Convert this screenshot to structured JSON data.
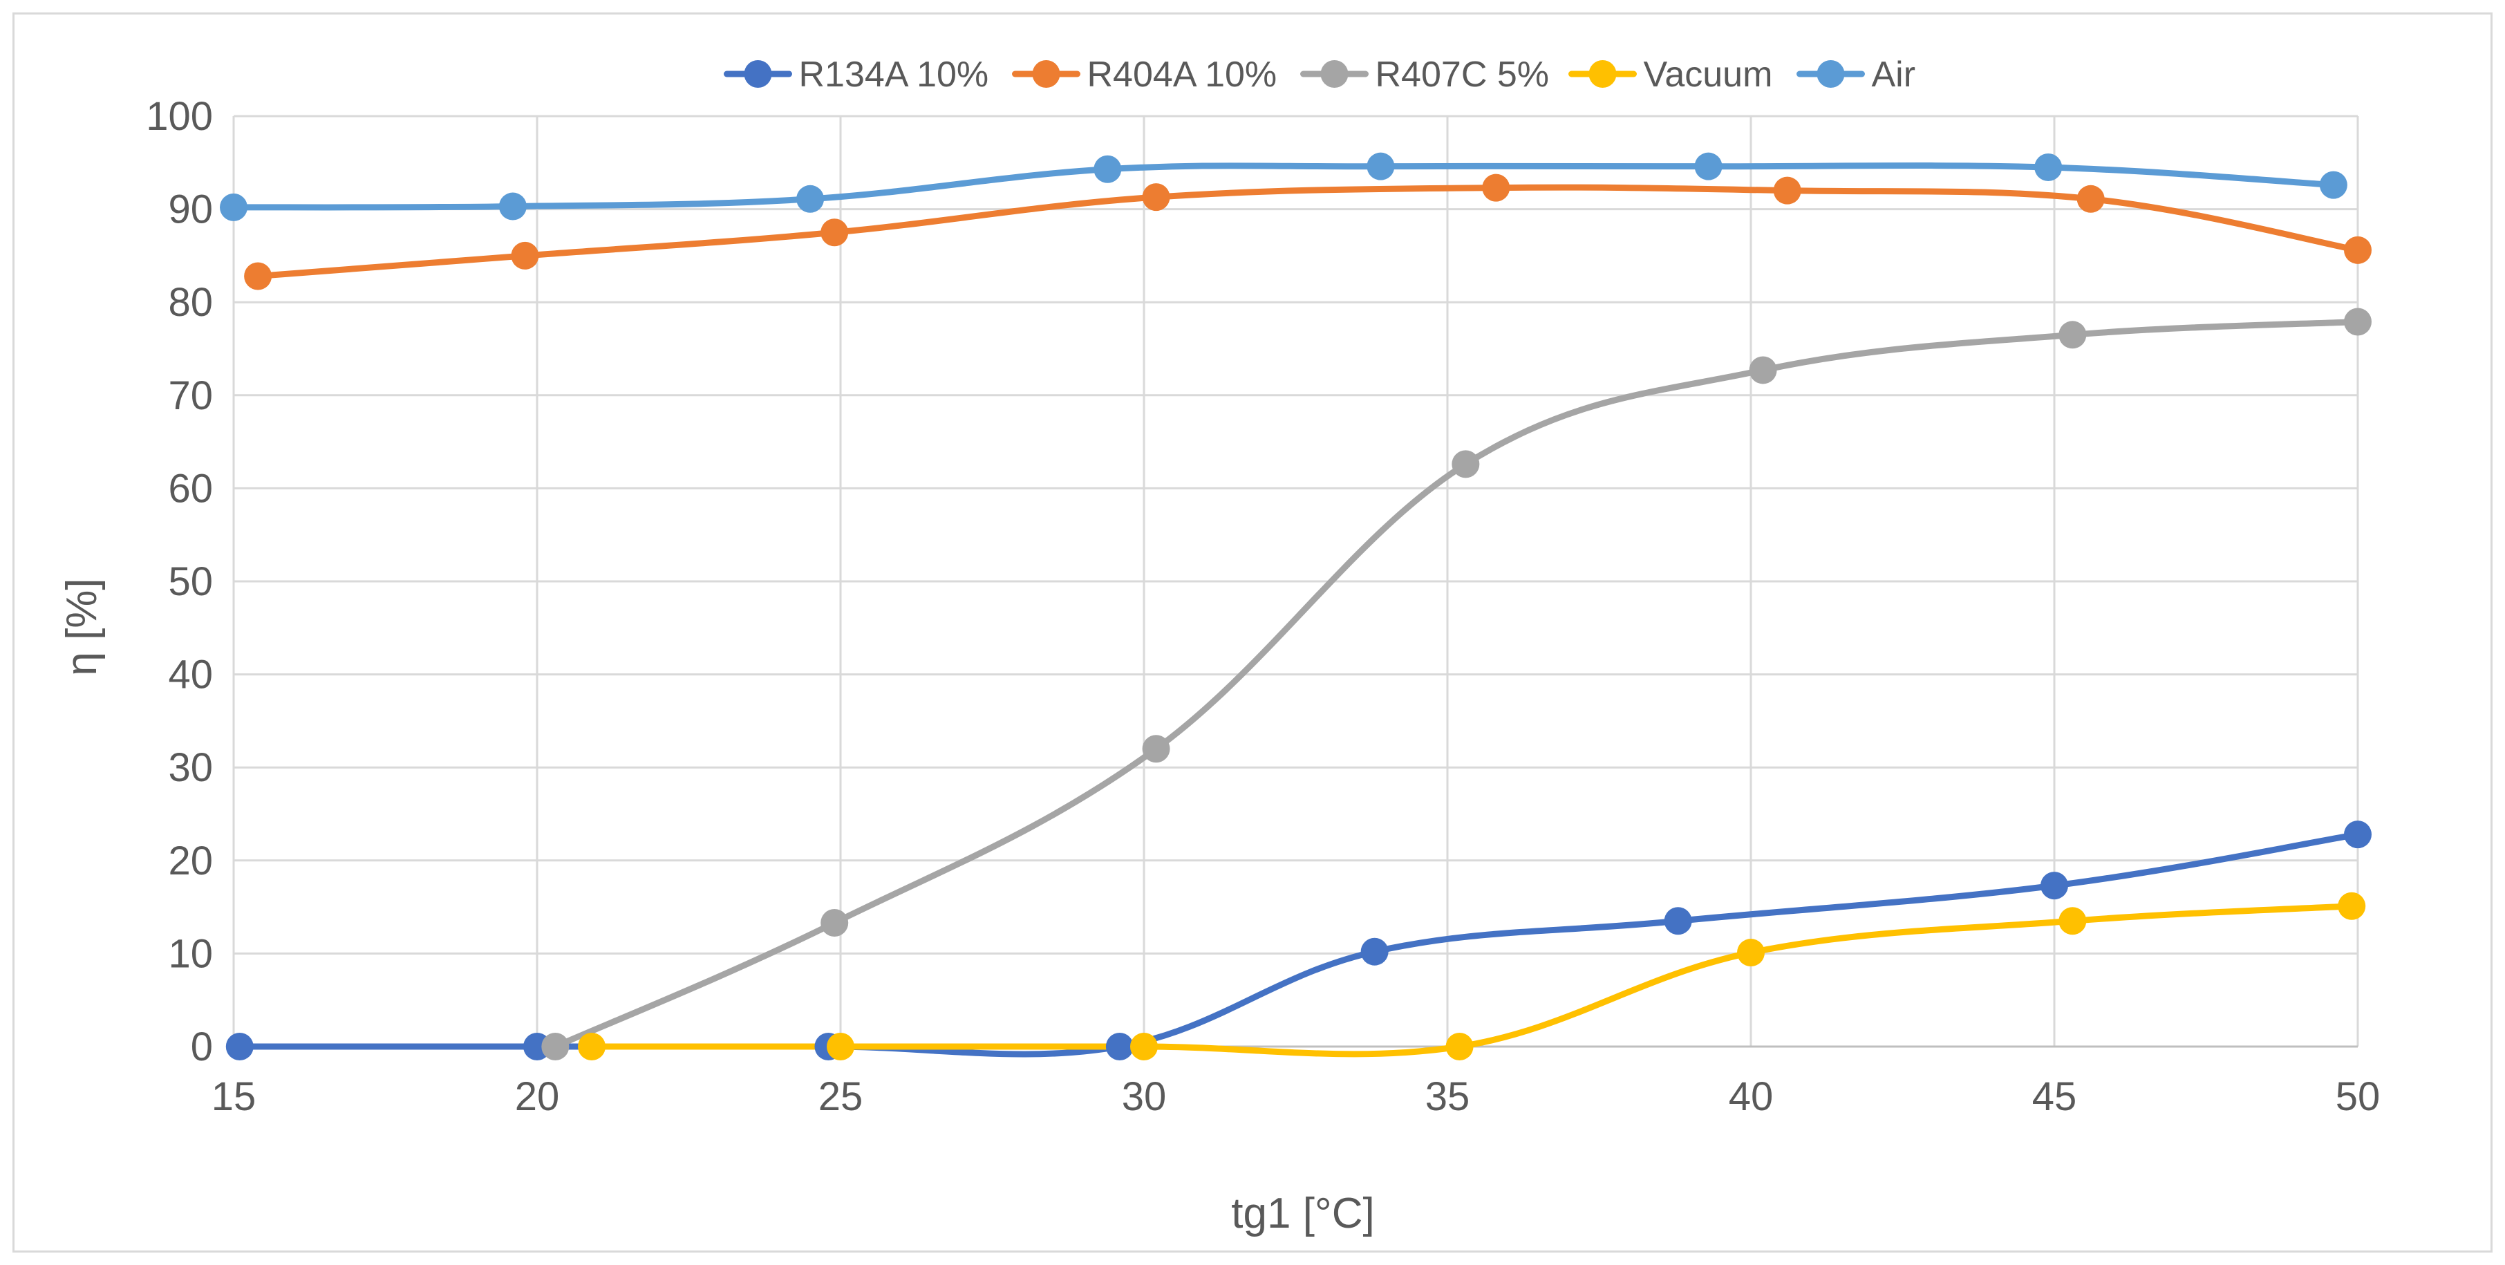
{
  "chart_data": {
    "type": "line",
    "title": "",
    "xlabel": "tg1 [°C]",
    "ylabel": "η [%]",
    "xlim": [
      15,
      50
    ],
    "ylim": [
      0,
      100
    ],
    "xticks": [
      15,
      20,
      25,
      30,
      35,
      40,
      45,
      50
    ],
    "yticks": [
      0,
      10,
      20,
      30,
      40,
      50,
      60,
      70,
      80,
      90,
      100
    ],
    "grid": true,
    "legend_position": "top-center",
    "series": [
      {
        "name": "R134A 10%",
        "color": "#4472c4",
        "points": [
          [
            15.1,
            0
          ],
          [
            20.0,
            0
          ],
          [
            24.8,
            0
          ],
          [
            29.6,
            0
          ],
          [
            33.8,
            10.2
          ],
          [
            38.8,
            13.5
          ],
          [
            45.0,
            17.3
          ],
          [
            50.0,
            22.8
          ]
        ]
      },
      {
        "name": "R404A 10%",
        "color": "#ed7d31",
        "points": [
          [
            15.4,
            82.8
          ],
          [
            19.8,
            85.0
          ],
          [
            24.9,
            87.5
          ],
          [
            30.2,
            91.3
          ],
          [
            35.8,
            92.3
          ],
          [
            40.6,
            92.0
          ],
          [
            45.6,
            91.1
          ],
          [
            50.0,
            85.6
          ]
        ]
      },
      {
        "name": "R407C 5%",
        "color": "#a5a5a5",
        "points": [
          [
            20.3,
            0
          ],
          [
            24.9,
            13.3
          ],
          [
            30.2,
            32.0
          ],
          [
            35.3,
            62.6
          ],
          [
            40.2,
            72.7
          ],
          [
            45.3,
            76.5
          ],
          [
            50.0,
            77.9
          ]
        ]
      },
      {
        "name": "Vacuum",
        "color": "#ffc000",
        "points": [
          [
            20.9,
            0
          ],
          [
            25.0,
            0
          ],
          [
            30.0,
            0
          ],
          [
            35.2,
            0
          ],
          [
            40.0,
            10.1
          ],
          [
            45.3,
            13.5
          ],
          [
            49.9,
            15.1
          ]
        ]
      },
      {
        "name": "Air",
        "color": "#5b9bd5",
        "points": [
          [
            15.0,
            90.2
          ],
          [
            19.6,
            90.3
          ],
          [
            24.5,
            91.1
          ],
          [
            29.4,
            94.3
          ],
          [
            33.9,
            94.6
          ],
          [
            39.3,
            94.6
          ],
          [
            44.9,
            94.5
          ],
          [
            49.6,
            92.6
          ]
        ]
      }
    ]
  }
}
